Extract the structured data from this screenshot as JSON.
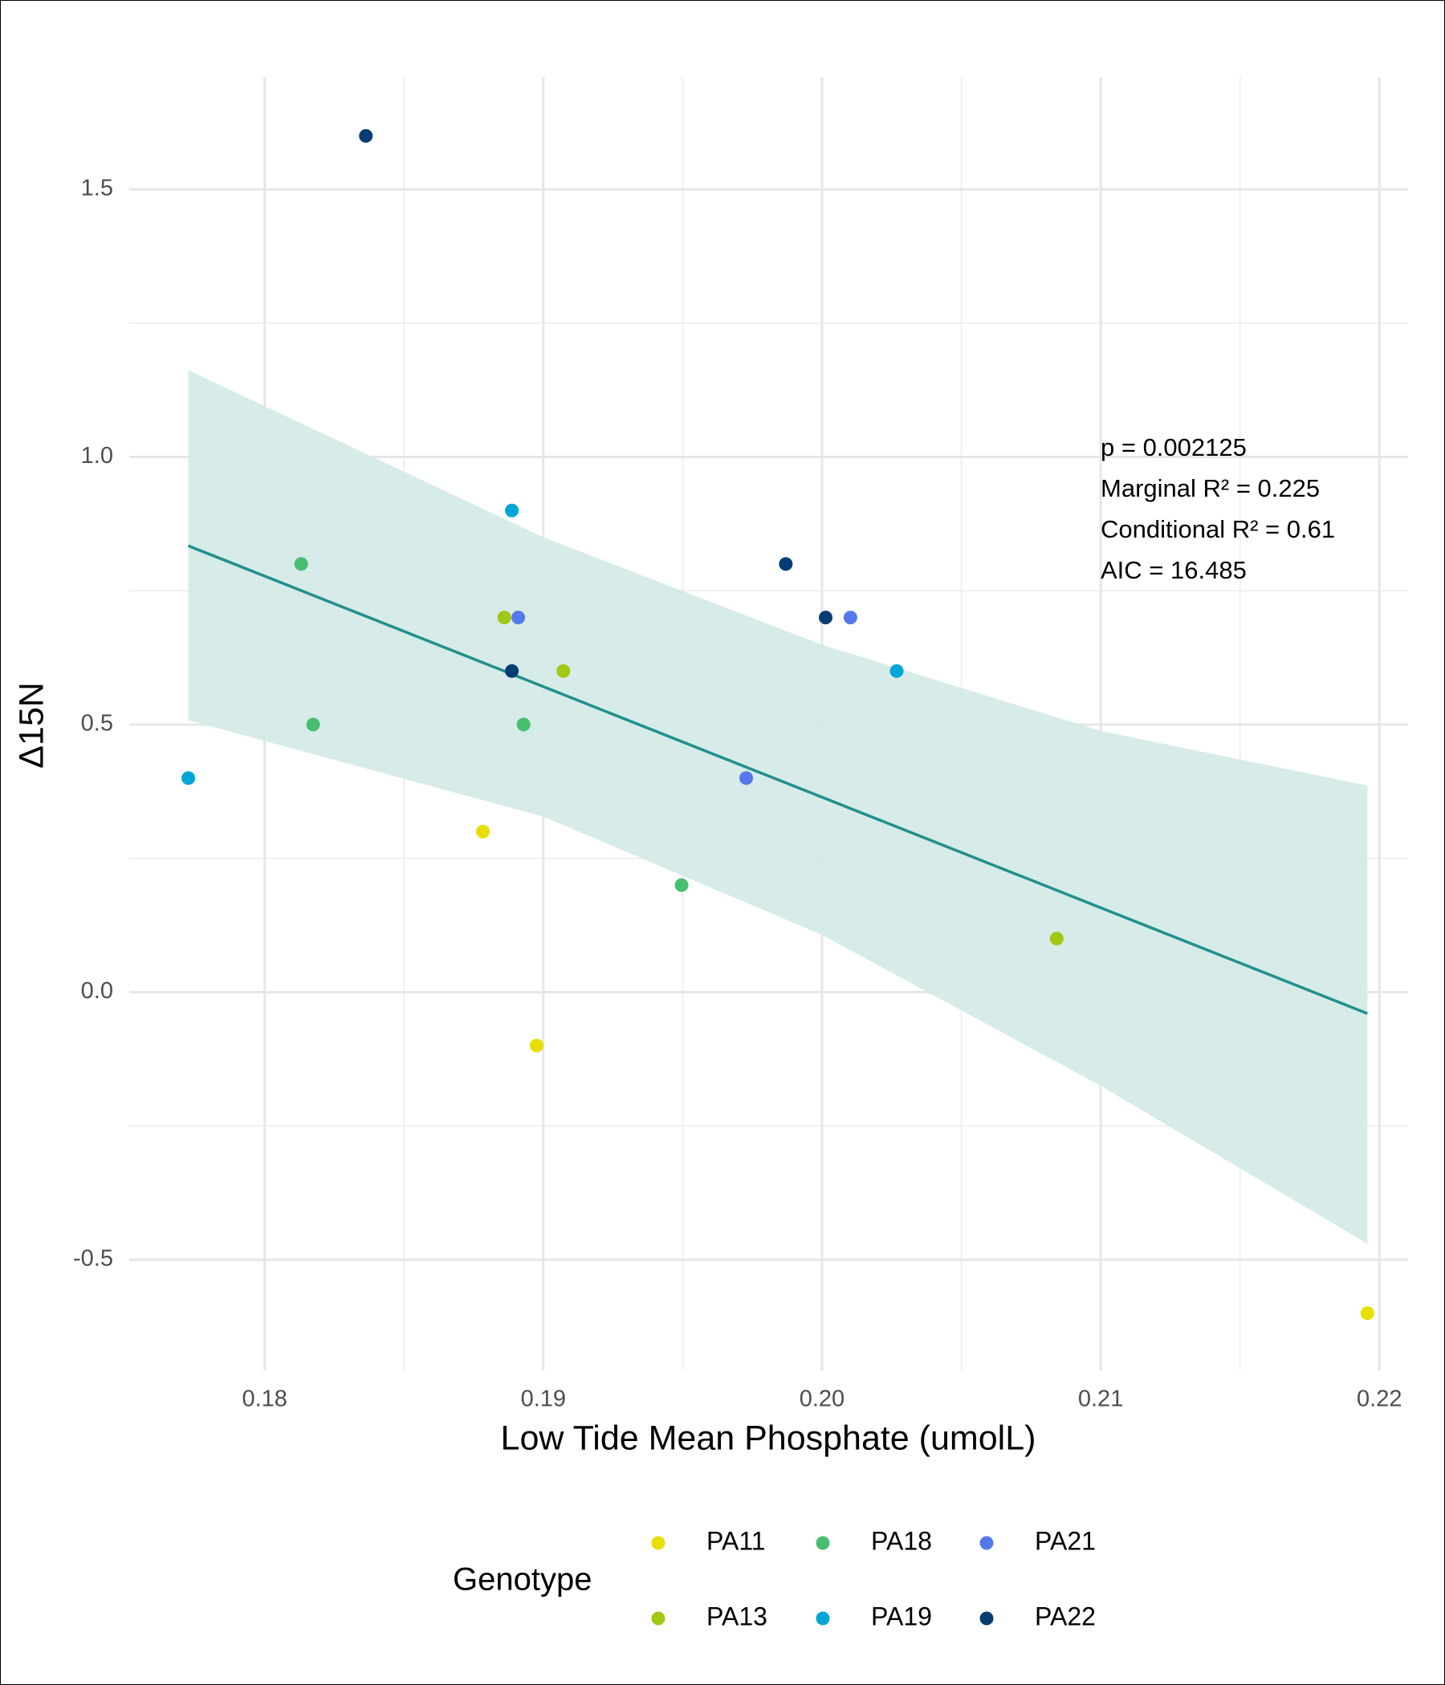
{
  "chart_data": {
    "type": "scatter",
    "x_label": "Low Tide Mean Phosphate (umolL)",
    "y_label": "Δ15N",
    "xlim": [
      0.17514,
      0.22103
    ],
    "ylim": [
      -0.707,
      1.71
    ],
    "xticks": [
      0.18,
      0.19,
      {
        "value": 0.2,
        "label": "0.20"
      },
      0.21,
      0.22
    ],
    "yticks": [
      -0.5,
      {
        "value": 0,
        "label": "0.0"
      },
      0.5,
      {
        "value": 1,
        "label": "1.0"
      },
      1.5
    ],
    "minor_xticks": [
      0.185,
      0.195,
      0.205,
      0.215
    ],
    "minor_yticks": [
      -0.25,
      0.25,
      0.75,
      1.25
    ],
    "grid": true,
    "legend_title": "Genotype",
    "legend_position": "bottom",
    "series": [
      {
        "name": "PA11",
        "color": "#e6df00",
        "x": [
          0.18783,
          0.18976,
          0.21957
        ],
        "values": [
          0.3,
          -0.1,
          -0.6
        ]
      },
      {
        "name": "PA13",
        "color": "#a0c814",
        "x": [
          0.1886,
          0.19072,
          0.20842
        ],
        "values": [
          0.7,
          0.6,
          0.1
        ]
      },
      {
        "name": "PA18",
        "color": "#48bf6f",
        "x": [
          0.18131,
          0.18174,
          0.18929,
          0.19496
        ],
        "values": [
          0.8,
          0.5,
          0.5,
          0.2
        ]
      },
      {
        "name": "PA19",
        "color": "#00a6d6",
        "x": [
          0.17726,
          0.18887,
          0.20268
        ],
        "values": [
          0.4,
          0.9,
          0.6
        ]
      },
      {
        "name": "PA21",
        "color": "#5479e8",
        "x": [
          0.1891,
          0.19728,
          0.20102
        ],
        "values": [
          0.7,
          0.4,
          0.7
        ]
      },
      {
        "name": "PA22",
        "color": "#033d73",
        "x": [
          0.18363,
          0.1987,
          0.20013,
          0.18887
        ],
        "values": [
          1.6,
          0.8,
          0.7,
          0.6
        ]
      }
    ],
    "fit": {
      "color": "#21908c",
      "x": [
        0.17726,
        0.21957
      ],
      "values": [
        0.834,
        -0.04
      ]
    },
    "ribbon": {
      "color": "#d3e9e6",
      "x": [
        0.17726,
        0.19,
        0.2,
        0.21,
        0.21957
      ],
      "upper": [
        1.162,
        0.85,
        0.649,
        0.488,
        0.386
      ],
      "lower": [
        0.508,
        0.328,
        0.107,
        -0.175,
        -0.47
      ]
    },
    "annotations": [
      "p = 0.002125",
      "Marginal R² = 0.225",
      "Conditional R² = 0.61",
      "AIC = 16.485"
    ]
  }
}
